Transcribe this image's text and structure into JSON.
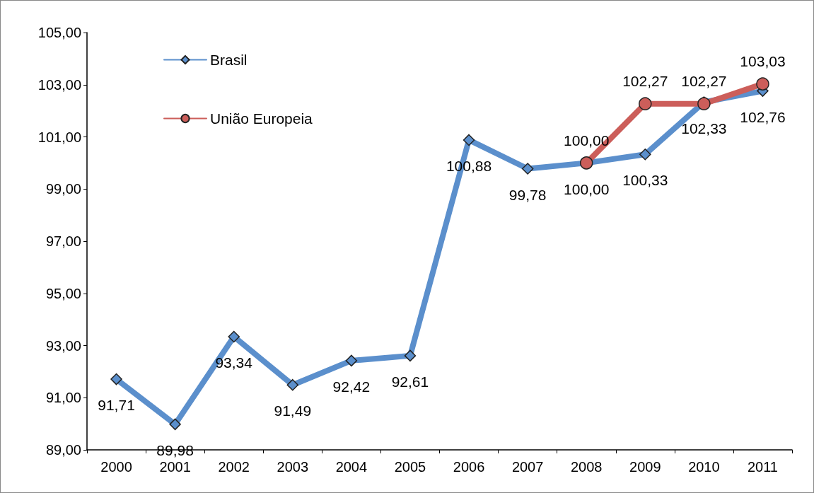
{
  "chart_data": {
    "type": "line",
    "categories": [
      "2000",
      "2001",
      "2002",
      "2003",
      "2004",
      "2005",
      "2006",
      "2007",
      "2008",
      "2009",
      "2010",
      "2011"
    ],
    "series": [
      {
        "name": "Brasil",
        "color": "#5b8fcc",
        "marker": "diamond",
        "values": [
          91.71,
          89.98,
          93.34,
          91.49,
          92.42,
          92.61,
          100.88,
          99.78,
          100.0,
          100.33,
          102.33,
          102.76
        ],
        "value_labels": [
          "91,71",
          "89,98",
          "93,34",
          "91,49",
          "92,42",
          "92,61",
          "100,88",
          "99,78",
          "100,00",
          "100,33",
          "102,33",
          "102,76"
        ]
      },
      {
        "name": "União Europeia",
        "color": "#cc5e5a",
        "marker": "circle",
        "values": [
          null,
          null,
          null,
          null,
          null,
          null,
          null,
          null,
          100.0,
          102.27,
          102.27,
          103.03
        ],
        "value_labels": [
          null,
          null,
          null,
          null,
          null,
          null,
          null,
          null,
          "100,00",
          "102,27",
          "102,27",
          "103,03"
        ]
      }
    ],
    "ylim": [
      89,
      105
    ],
    "yticks": [
      {
        "value": 89,
        "label": "89,00"
      },
      {
        "value": 91,
        "label": "91,00"
      },
      {
        "value": 93,
        "label": "93,00"
      },
      {
        "value": 95,
        "label": "95,00"
      },
      {
        "value": 97,
        "label": "97,00"
      },
      {
        "value": 99,
        "label": "99,00"
      },
      {
        "value": 101,
        "label": "101,00"
      },
      {
        "value": 103,
        "label": "103,00"
      },
      {
        "value": 105,
        "label": "105,00"
      }
    ],
    "grid": false,
    "legend": "top left",
    "line_style": "solid"
  }
}
